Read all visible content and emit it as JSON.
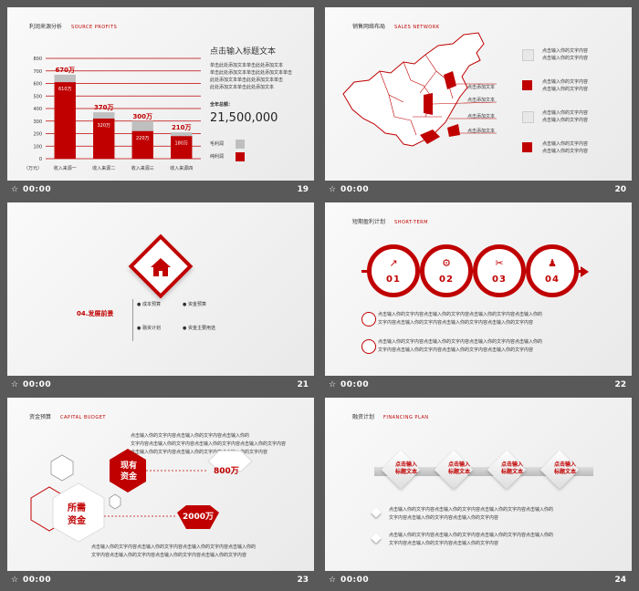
{
  "bar_time": "00:00",
  "slides": {
    "s19": {
      "num": "19",
      "title_cn": "利润来源分析",
      "title_en": "SOURCE PROFITS",
      "yaxis_ticks": [
        "800",
        "700",
        "600",
        "500",
        "400",
        "300",
        "200",
        "100",
        "0"
      ],
      "yaxis_unit": "（万元）",
      "heading": "点击输入标题文本",
      "para": [
        "单击此处添加文本单击此处添加文本",
        "单击此处添加文本单击此处添加文本单击",
        "此处添加文本单击此处添加文本单击",
        "此处添加文本单击此处添加文本"
      ],
      "total_label": "全年总额：",
      "total_value": "21,500,000",
      "legend_gross": "毛利润",
      "legend_net": "纯利润",
      "chart_data": {
        "type": "bar",
        "categories": [
          "收入来源一",
          "收入来源二",
          "收入来源三",
          "收入来源四"
        ],
        "series": [
          {
            "name": "毛利润",
            "values": [
              670,
              370,
              300,
              210
            ],
            "labels": [
              "670万",
              "370万",
              "300万",
              "210万"
            ]
          },
          {
            "name": "纯利润",
            "values": [
              610,
              320,
              220,
              180
            ],
            "labels": [
              "610万",
              "320万",
              "220万",
              "180万"
            ]
          }
        ],
        "ylim": [
          0,
          800
        ],
        "ylabel": "（万元）",
        "colors": {
          "gross": "#bfbfbf",
          "net": "#c00000"
        }
      }
    },
    "s20": {
      "num": "20",
      "title_cn": "销售网络布局",
      "title_en": "SALES NETWORK",
      "map_labels": [
        "点击添加文本",
        "点击添加文本",
        "点击添加文本",
        "点击添加文本"
      ],
      "legend": [
        {
          "line1": "点击输入你的文字内容",
          "line2": "点击输入你的文字内容",
          "color": "#e8e8e8"
        },
        {
          "line1": "点击输入你的文字内容",
          "line2": "点击输入你的文字内容",
          "color": "#c00000"
        },
        {
          "line1": "点击输入你的文字内容",
          "line2": "点击输入你的文字内容",
          "color": "#e8e8e8"
        },
        {
          "line1": "点击输入你的文字内容",
          "line2": "点击输入你的文字内容",
          "color": "#c00000"
        }
      ]
    },
    "s21": {
      "num": "21",
      "section": "04.发展前景",
      "items": [
        "成本预算",
        "资金预算",
        "融资计划",
        "资金主要用途"
      ]
    },
    "s22": {
      "num": "22",
      "title_cn": "短期盈利计划",
      "title_en": "SHORT-TERM",
      "circles": [
        "01",
        "02",
        "03",
        "04"
      ],
      "lines": [
        [
          "点击输入你的文字内容点击输入你的文字内容点击输入你的文字内容点击输入你的",
          "文字内容点击输入你的文字内容点击输入你的文字内容点击输入你的文字内容"
        ],
        [
          "点击输入你的文字内容点击输入你的文字内容点击输入你的文字内容点击输入你的",
          "文字内容点击输入你的文字内容点击输入你的文字内容点击输入你的文字内容"
        ]
      ]
    },
    "s23": {
      "num": "23",
      "title_cn": "资金预算",
      "title_en": "CAPITAL BUDGET",
      "top_text": [
        "点击输入你的文字内容点击输入你的文字内容点击输入你的",
        "文字内容点击输入你的文字内容点击输入你的文字内容点击输入你的文字内容",
        "点击输入你的文字内容点击输入你的文字内容点击输入你的文字内容"
      ],
      "existing_label1": "现有",
      "existing_label2": "资金",
      "existing_value": "800万",
      "needed_label1": "所需",
      "needed_label2": "资金",
      "needed_value": "2000万",
      "bottom_text": [
        "点击输入你的文字内容点击输入你的文字内容点击输入你的文字内容点击输入你的",
        "文字内容点击输入你的文字内容点击输入你的文字内容点击输入你的文字内容"
      ]
    },
    "s24": {
      "num": "24",
      "title_cn": "融资计划",
      "title_en": "FINANCING PLAN",
      "diamonds": [
        {
          "l1": "点击输入",
          "l2": "标题文本"
        },
        {
          "l1": "点击输入",
          "l2": "标题文本"
        },
        {
          "l1": "点击输入",
          "l2": "标题文本"
        },
        {
          "l1": "点击输入",
          "l2": "标题文本"
        }
      ],
      "lines": [
        [
          "点击输入你的文字内容点击输入你的文字内容点击输入你的文字内容点击输入你的",
          "文字内容点击输入你的文字内容点击输入你的文字内容"
        ],
        [
          "点击输入你的文字内容点击输入你的文字内容点击输入你的文字内容点击输入你的",
          "文字内容点击输入你的文字内容点击输入你的文字内容"
        ]
      ]
    }
  }
}
